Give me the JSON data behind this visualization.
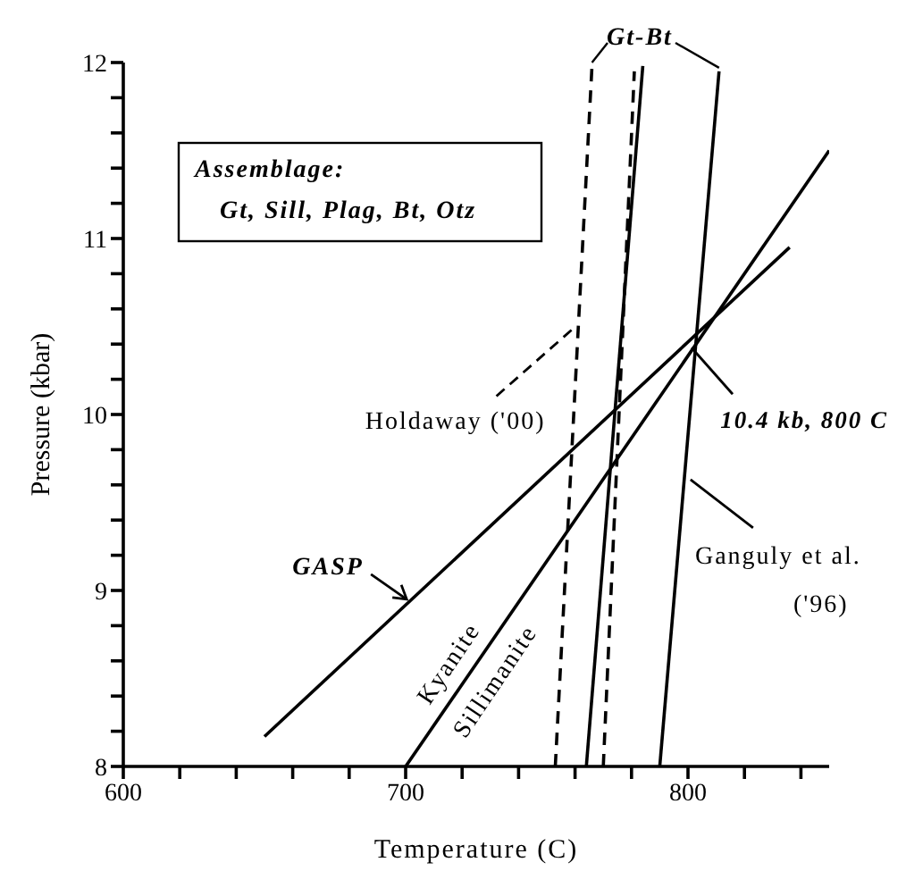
{
  "chart_data": {
    "type": "line",
    "xlabel": "Temperature (C)",
    "ylabel": "Pressure (kbar)",
    "xlim": [
      600,
      850
    ],
    "xticks": [
      600,
      {
        "value": 620,
        "label": null
      },
      {
        "value": 640,
        "label": null
      },
      {
        "value": 660,
        "label": null
      },
      {
        "value": 680,
        "label": null
      },
      700,
      {
        "value": 720,
        "label": null
      },
      {
        "value": 740,
        "label": null
      },
      {
        "value": 760,
        "label": null
      },
      {
        "value": 780,
        "label": null
      },
      800,
      {
        "value": 820,
        "label": null
      },
      {
        "value": 840,
        "label": null
      }
    ],
    "ylim": [
      8,
      12
    ],
    "yticks": [
      8,
      {
        "value": 8.2,
        "label": null
      },
      {
        "value": 8.4,
        "label": null
      },
      {
        "value": 8.6,
        "label": null
      },
      {
        "value": 8.8,
        "label": null
      },
      9,
      {
        "value": 9.2,
        "label": null
      },
      {
        "value": 9.4,
        "label": null
      },
      {
        "value": 9.6,
        "label": null
      },
      {
        "value": 9.8,
        "label": null
      },
      10,
      {
        "value": 10.2,
        "label": null
      },
      {
        "value": 10.4,
        "label": null
      },
      {
        "value": 10.6,
        "label": null
      },
      {
        "value": 10.8,
        "label": null
      },
      11,
      {
        "value": 11.2,
        "label": null
      },
      {
        "value": 11.4,
        "label": null
      },
      {
        "value": 11.6,
        "label": null
      },
      {
        "value": 11.8,
        "label": null
      },
      12
    ],
    "line_style": "solid",
    "series": [
      {
        "color": "#000000",
        "x": [
          650,
          836
        ],
        "values": [
          8.17,
          10.95
        ]
      },
      {
        "color": "#000000",
        "x": [
          700,
          850
        ],
        "values": [
          8,
          11.5
        ]
      },
      {
        "color": "#000000",
        "x": [
          764,
          784
        ],
        "values": [
          8,
          11.98
        ]
      },
      {
        "color": "#000000",
        "x": [
          790,
          811
        ],
        "values": [
          8,
          11.95
        ]
      },
      {
        "color": "#000000",
        "x": [
          753,
          766
        ],
        "values": [
          8,
          11.98
        ],
        "line_style": "dashed"
      },
      {
        "color": "#000000",
        "x": [
          770,
          781
        ],
        "values": [
          8,
          11.95
        ],
        "line_style": "dashed"
      }
    ],
    "annotations": [
      "Assemblage:",
      "Gt, Sill, Plag, Bt, Otz",
      {
        "text": "Gt-Bt",
        "x": 811,
        "y": 11.95
      },
      {
        "text": "Holdaway ('00)",
        "x": 760,
        "y": 10.5
      },
      {
        "text": "10.4 kb, 800 C",
        "x": 800,
        "y": 10.4
      },
      {
        "text": "Ganguly et al.\n('96)",
        "x": 799,
        "y": 9.65
      },
      {
        "text": "GASP",
        "x": 701,
        "y": 8.94
      },
      "Kyanite",
      "Sillimanite"
    ]
  }
}
